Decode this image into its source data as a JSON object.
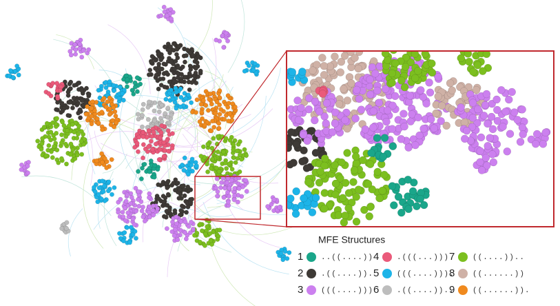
{
  "legend": {
    "title": "MFE Structures",
    "items": [
      {
        "number": "1",
        "structure": "..((....))"
      },
      {
        "number": "2",
        "structure": ".((....))."
      },
      {
        "number": "3",
        "structure": "(((....)))"
      },
      {
        "number": "4",
        "structure": ".(((...)))"
      },
      {
        "number": "5",
        "structure": "(((....)))."
      },
      {
        "number": "6",
        "structure": ".((....)).."
      },
      {
        "number": "7",
        "structure": "((....)).."
      },
      {
        "number": "8",
        "structure": "((......))"
      },
      {
        "number": "9",
        "structure": "((......))."
      }
    ]
  }
}
